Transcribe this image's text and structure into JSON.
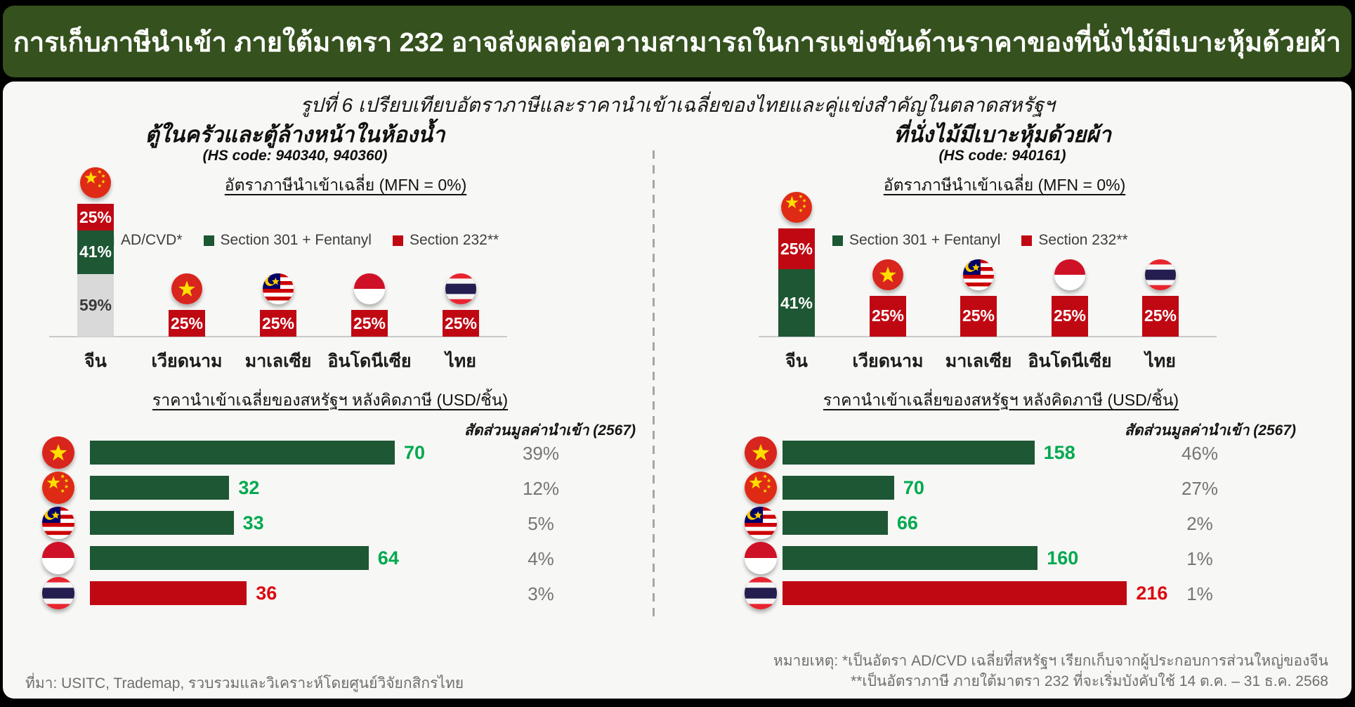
{
  "banner": {
    "title": "การเก็บภาษีนำเข้า ภายใต้มาตรา 232 อาจส่งผลต่อความสามารถในการแข่งขันด้านราคาของที่นั่งไม้มีเบาะหุ้มด้วยผ้า"
  },
  "figure": {
    "caption": "รูปที่ 6 เปรียบเทียบอัตราภาษีและราคานำเข้าเฉลี่ยของไทยและคู่แข่งสำคัญในตลาดสหรัฐฯ"
  },
  "panels": [
    {
      "title": "ตู้ในครัวและตู้ล้างหน้าในห้องน้ำ",
      "hs_code": "(HS code: 940340, 940360)"
    },
    {
      "title": "ที่นั่งไม้มีเบาะหุ้มด้วยผ้า",
      "hs_code": "(HS code: 940161)"
    }
  ],
  "chart_data": [
    {
      "type": "bar",
      "panel": "left",
      "stacked": true,
      "title": "อัตราภาษีนำเข้าเฉลี่ย (MFN = 0%)",
      "unit": "%",
      "categories": [
        "จีน",
        "เวียดนาม",
        "มาเลเซีย",
        "อินโดนีเซีย",
        "ไทย"
      ],
      "flags": [
        "china",
        "vietnam",
        "malaysia",
        "indonesia",
        "thailand"
      ],
      "series": [
        {
          "name": "AD/CVD*",
          "color": "gray",
          "values": [
            59,
            0,
            0,
            0,
            0
          ]
        },
        {
          "name": "Section 301 + Fentanyl",
          "color": "green",
          "values": [
            41,
            0,
            0,
            0,
            0
          ]
        },
        {
          "name": "Section 232**",
          "color": "red",
          "values": [
            25,
            25,
            25,
            25,
            25
          ]
        }
      ],
      "legend_position": "inside-top",
      "grid": false
    },
    {
      "type": "bar",
      "panel": "right",
      "stacked": true,
      "title": "อัตราภาษีนำเข้าเฉลี่ย (MFN = 0%)",
      "unit": "%",
      "categories": [
        "จีน",
        "เวียดนาม",
        "มาเลเซีย",
        "อินโดนีเซีย",
        "ไทย"
      ],
      "flags": [
        "china",
        "vietnam",
        "malaysia",
        "indonesia",
        "thailand"
      ],
      "series": [
        {
          "name": "Section 301 + Fentanyl",
          "color": "green",
          "values": [
            41,
            0,
            0,
            0,
            0
          ]
        },
        {
          "name": "Section 232**",
          "color": "red",
          "values": [
            25,
            25,
            25,
            25,
            25
          ]
        }
      ],
      "legend_position": "inside-top",
      "grid": false
    },
    {
      "type": "bar",
      "panel": "left",
      "orientation": "horizontal",
      "title": "ราคานำเข้าเฉลี่ยของสหรัฐฯ หลังคิดภาษี (USD/ชิ้น)",
      "share_header": "สัดส่วนมูลค่านำเข้า (2567)",
      "unit": "USD",
      "categories": [
        "เวียดนาม",
        "จีน",
        "มาเลเซีย",
        "อินโดนีเซีย",
        "ไทย"
      ],
      "flags": [
        "vietnam",
        "china",
        "malaysia",
        "indonesia",
        "thailand"
      ],
      "values": [
        70,
        32,
        33,
        64,
        36
      ],
      "shares": [
        "39%",
        "12%",
        "5%",
        "4%",
        "3%"
      ],
      "highlight_index": 4,
      "grid": false
    },
    {
      "type": "bar",
      "panel": "right",
      "orientation": "horizontal",
      "title": "ราคานำเข้าเฉลี่ยของสหรัฐฯ หลังคิดภาษี (USD/ชิ้น)",
      "share_header": "สัดส่วนมูลค่านำเข้า (2567)",
      "unit": "USD",
      "categories": [
        "เวียดนาม",
        "จีน",
        "มาเลเซีย",
        "อินโดนีเซีย",
        "ไทย"
      ],
      "flags": [
        "vietnam",
        "china",
        "malaysia",
        "indonesia",
        "thailand"
      ],
      "values": [
        158,
        70,
        66,
        160,
        216
      ],
      "shares": [
        "46%",
        "27%",
        "2%",
        "1%",
        "1%"
      ],
      "highlight_index": 4,
      "grid": false
    }
  ],
  "footer": {
    "source": "ที่มา: USITC, Trademap,  รวบรวมและวิเคราะห์โดยศูนย์วิจัยกสิกรไทย",
    "note1": "หมายเหตุ: *เป็นอัตรา AD/CVD เฉลี่ยที่สหรัฐฯ เรียกเก็บจากผู้ประกอบการส่วนใหญ่ของจีน",
    "note2": "**เป็นอัตราภาษี ภายใต้มาตรา 232 ที่จะเริ่มบังคับใช้ 14 ต.ค. – 31 ธ.ค. 2568"
  },
  "colors": {
    "banner_green": "#35511E",
    "card_bg": "#F7F7F5",
    "bar_green": "#1D5733",
    "bar_red": "#C00813",
    "bar_gray": "#D9D9D9",
    "value_green": "#00A94F",
    "value_red": "#DC0A10",
    "segment_text_light": "#FFFFFF",
    "segment_text_dark": "#3A3A3A",
    "axis_gray": "#C9C9C9",
    "share_gray": "#757575"
  }
}
